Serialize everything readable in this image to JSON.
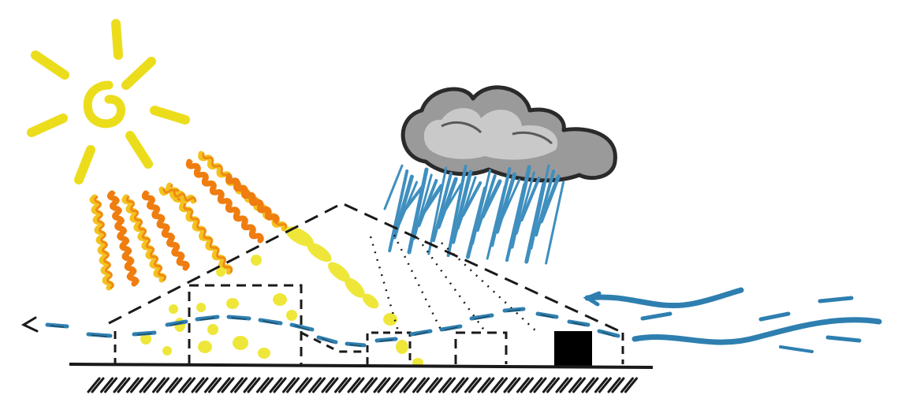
{
  "diagram": {
    "elements": {
      "sun": "sun-icon",
      "cloud": "cloud-icon",
      "rain": "rain-icon",
      "wind": "wind-icon",
      "heat": "heat-ray-icon",
      "light": "light-spot-icon",
      "building": "building-outline",
      "airflow": "airflow-arrow",
      "ground": "ground-line",
      "block": "solid-block"
    },
    "colors": {
      "sun": "#ecdd1c",
      "heat_orange": "#ef7d10",
      "heat_yellow": "#f3c21e",
      "light": "#eee73a",
      "rain": "#3f8fbf",
      "wind": "#2e7fb0",
      "cloud_outline": "#2a2a2a",
      "cloud_shade": "#8a8a8a",
      "line": "#1a1a1a",
      "block": "#000000"
    }
  }
}
